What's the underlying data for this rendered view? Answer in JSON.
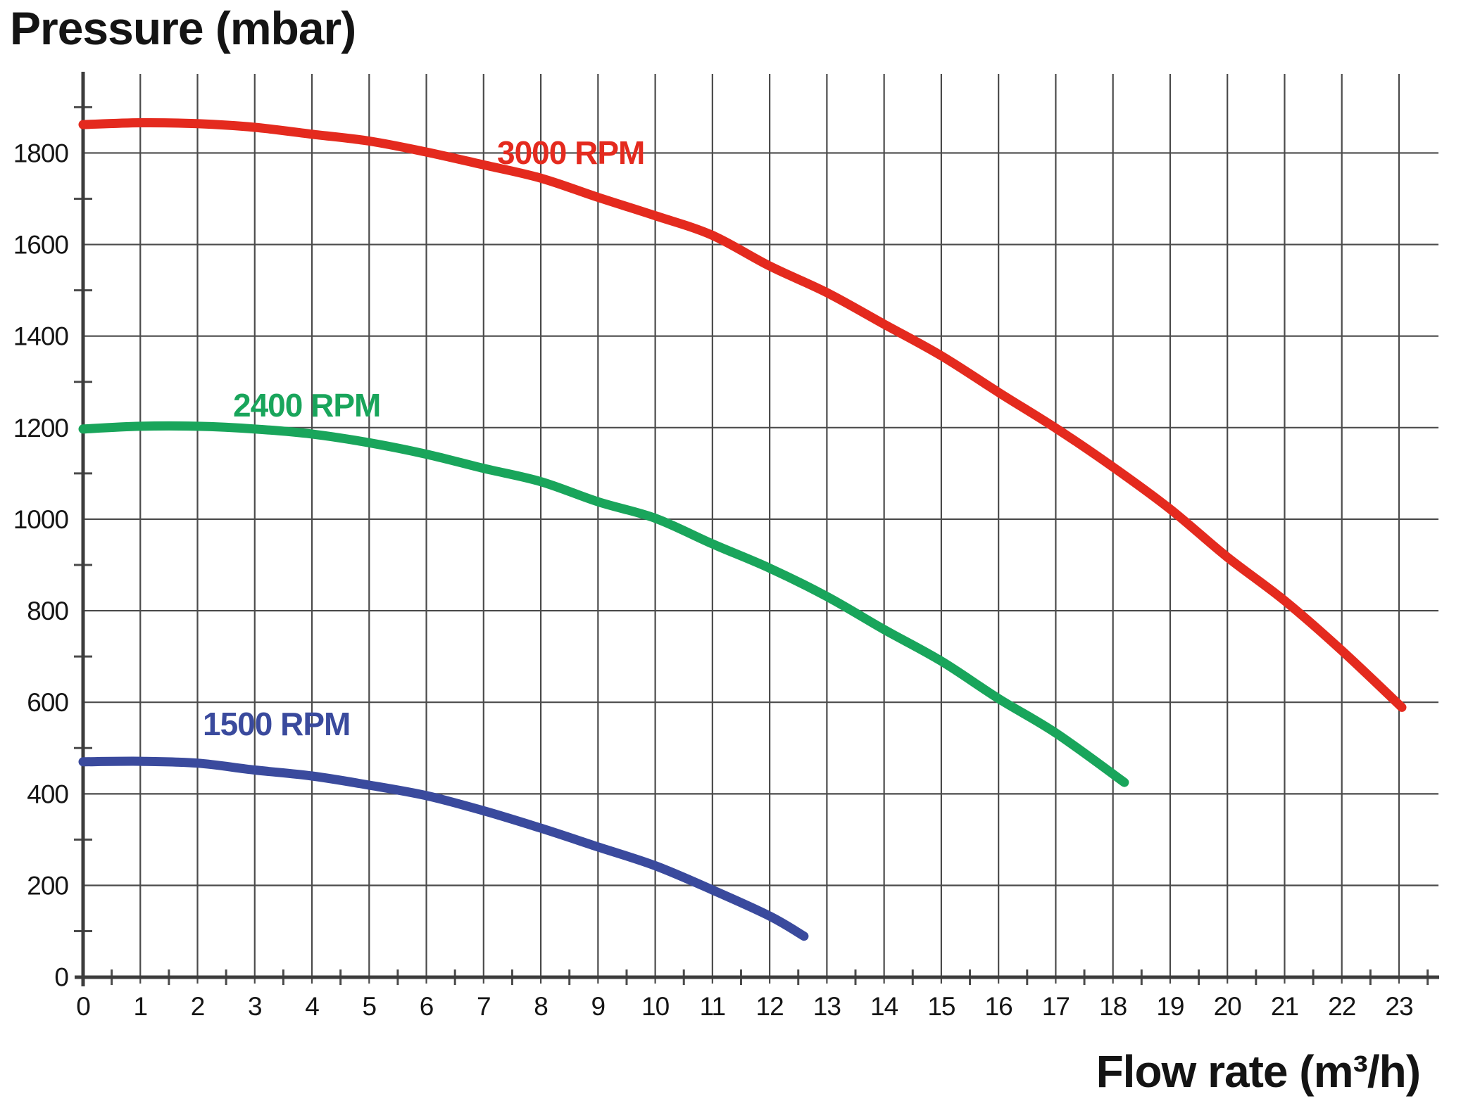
{
  "title": "Pressure (mbar)",
  "x_axis_title": "Flow rate (m³/h)",
  "colors": {
    "grid": "#4b4b4b",
    "axis": "#3c3c3c",
    "text": "#151515",
    "series_3000_rpm": "#e42a1e",
    "series_2400_rpm": "#19a55b",
    "series_1500_rpm": "#3a4a9d"
  },
  "chart_data": {
    "type": "line",
    "title": "Pressure (mbar)",
    "xlabel": "Flow rate (m³/h)",
    "ylabel": "Pressure (mbar)",
    "xlim": [
      0,
      23.7
    ],
    "ylim": [
      0,
      1970
    ],
    "grid": true,
    "legend_position": "inline-curve-labels",
    "x_tick_labels": [
      "0",
      "1",
      "2",
      "3",
      "4",
      "5",
      "6",
      "7",
      "8",
      "9",
      "10",
      "11",
      "12",
      "13",
      "14",
      "15",
      "16",
      "17",
      "18",
      "19",
      "20",
      "21",
      "22",
      "23"
    ],
    "x_tick_values": [
      0,
      1,
      2,
      3,
      4,
      5,
      6,
      7,
      8,
      9,
      10,
      11,
      12,
      13,
      14,
      15,
      16,
      17,
      18,
      19,
      20,
      21,
      22,
      23
    ],
    "x_minor_tick_interval": 0.5,
    "y_tick_labels": [
      "0",
      "200",
      "400",
      "600",
      "800",
      "1000",
      "1200",
      "1400",
      "1600",
      "1800"
    ],
    "y_tick_values": [
      0,
      200,
      400,
      600,
      800,
      1000,
      1200,
      1400,
      1600,
      1800
    ],
    "y_minor_tick_interval": 100,
    "series": [
      {
        "name": "3000 RPM",
        "color": "#e42a1e",
        "points": [
          [
            0,
            1862
          ],
          [
            1,
            1866
          ],
          [
            2,
            1864
          ],
          [
            3,
            1856
          ],
          [
            4,
            1841
          ],
          [
            5,
            1826
          ],
          [
            6,
            1802
          ],
          [
            7,
            1774
          ],
          [
            8,
            1745
          ],
          [
            9,
            1703
          ],
          [
            10,
            1663
          ],
          [
            11,
            1620
          ],
          [
            12,
            1553
          ],
          [
            13,
            1495
          ],
          [
            14,
            1426
          ],
          [
            15,
            1357
          ],
          [
            16,
            1277
          ],
          [
            17,
            1199
          ],
          [
            18,
            1114
          ],
          [
            19,
            1022
          ],
          [
            20,
            917
          ],
          [
            21,
            822
          ],
          [
            22,
            713
          ],
          [
            23.05,
            589
          ]
        ]
      },
      {
        "name": "2400 RPM",
        "color": "#19a55b",
        "points": [
          [
            0,
            1197
          ],
          [
            1,
            1203
          ],
          [
            2,
            1203
          ],
          [
            3,
            1197
          ],
          [
            4,
            1186
          ],
          [
            5,
            1167
          ],
          [
            6,
            1142
          ],
          [
            7,
            1111
          ],
          [
            8,
            1082
          ],
          [
            9,
            1038
          ],
          [
            10,
            1002
          ],
          [
            11,
            946
          ],
          [
            12,
            893
          ],
          [
            13,
            831
          ],
          [
            14,
            759
          ],
          [
            15,
            690
          ],
          [
            16,
            608
          ],
          [
            17,
            533
          ],
          [
            18.2,
            425
          ]
        ]
      },
      {
        "name": "1500 RPM",
        "color": "#3a4a9d",
        "points": [
          [
            0,
            470
          ],
          [
            1,
            471
          ],
          [
            2,
            467
          ],
          [
            3,
            452
          ],
          [
            4,
            439
          ],
          [
            5,
            419
          ],
          [
            6,
            396
          ],
          [
            7,
            363
          ],
          [
            8,
            325
          ],
          [
            9,
            284
          ],
          [
            10,
            243
          ],
          [
            11,
            190
          ],
          [
            12,
            133
          ],
          [
            12.6,
            89
          ]
        ]
      }
    ]
  }
}
